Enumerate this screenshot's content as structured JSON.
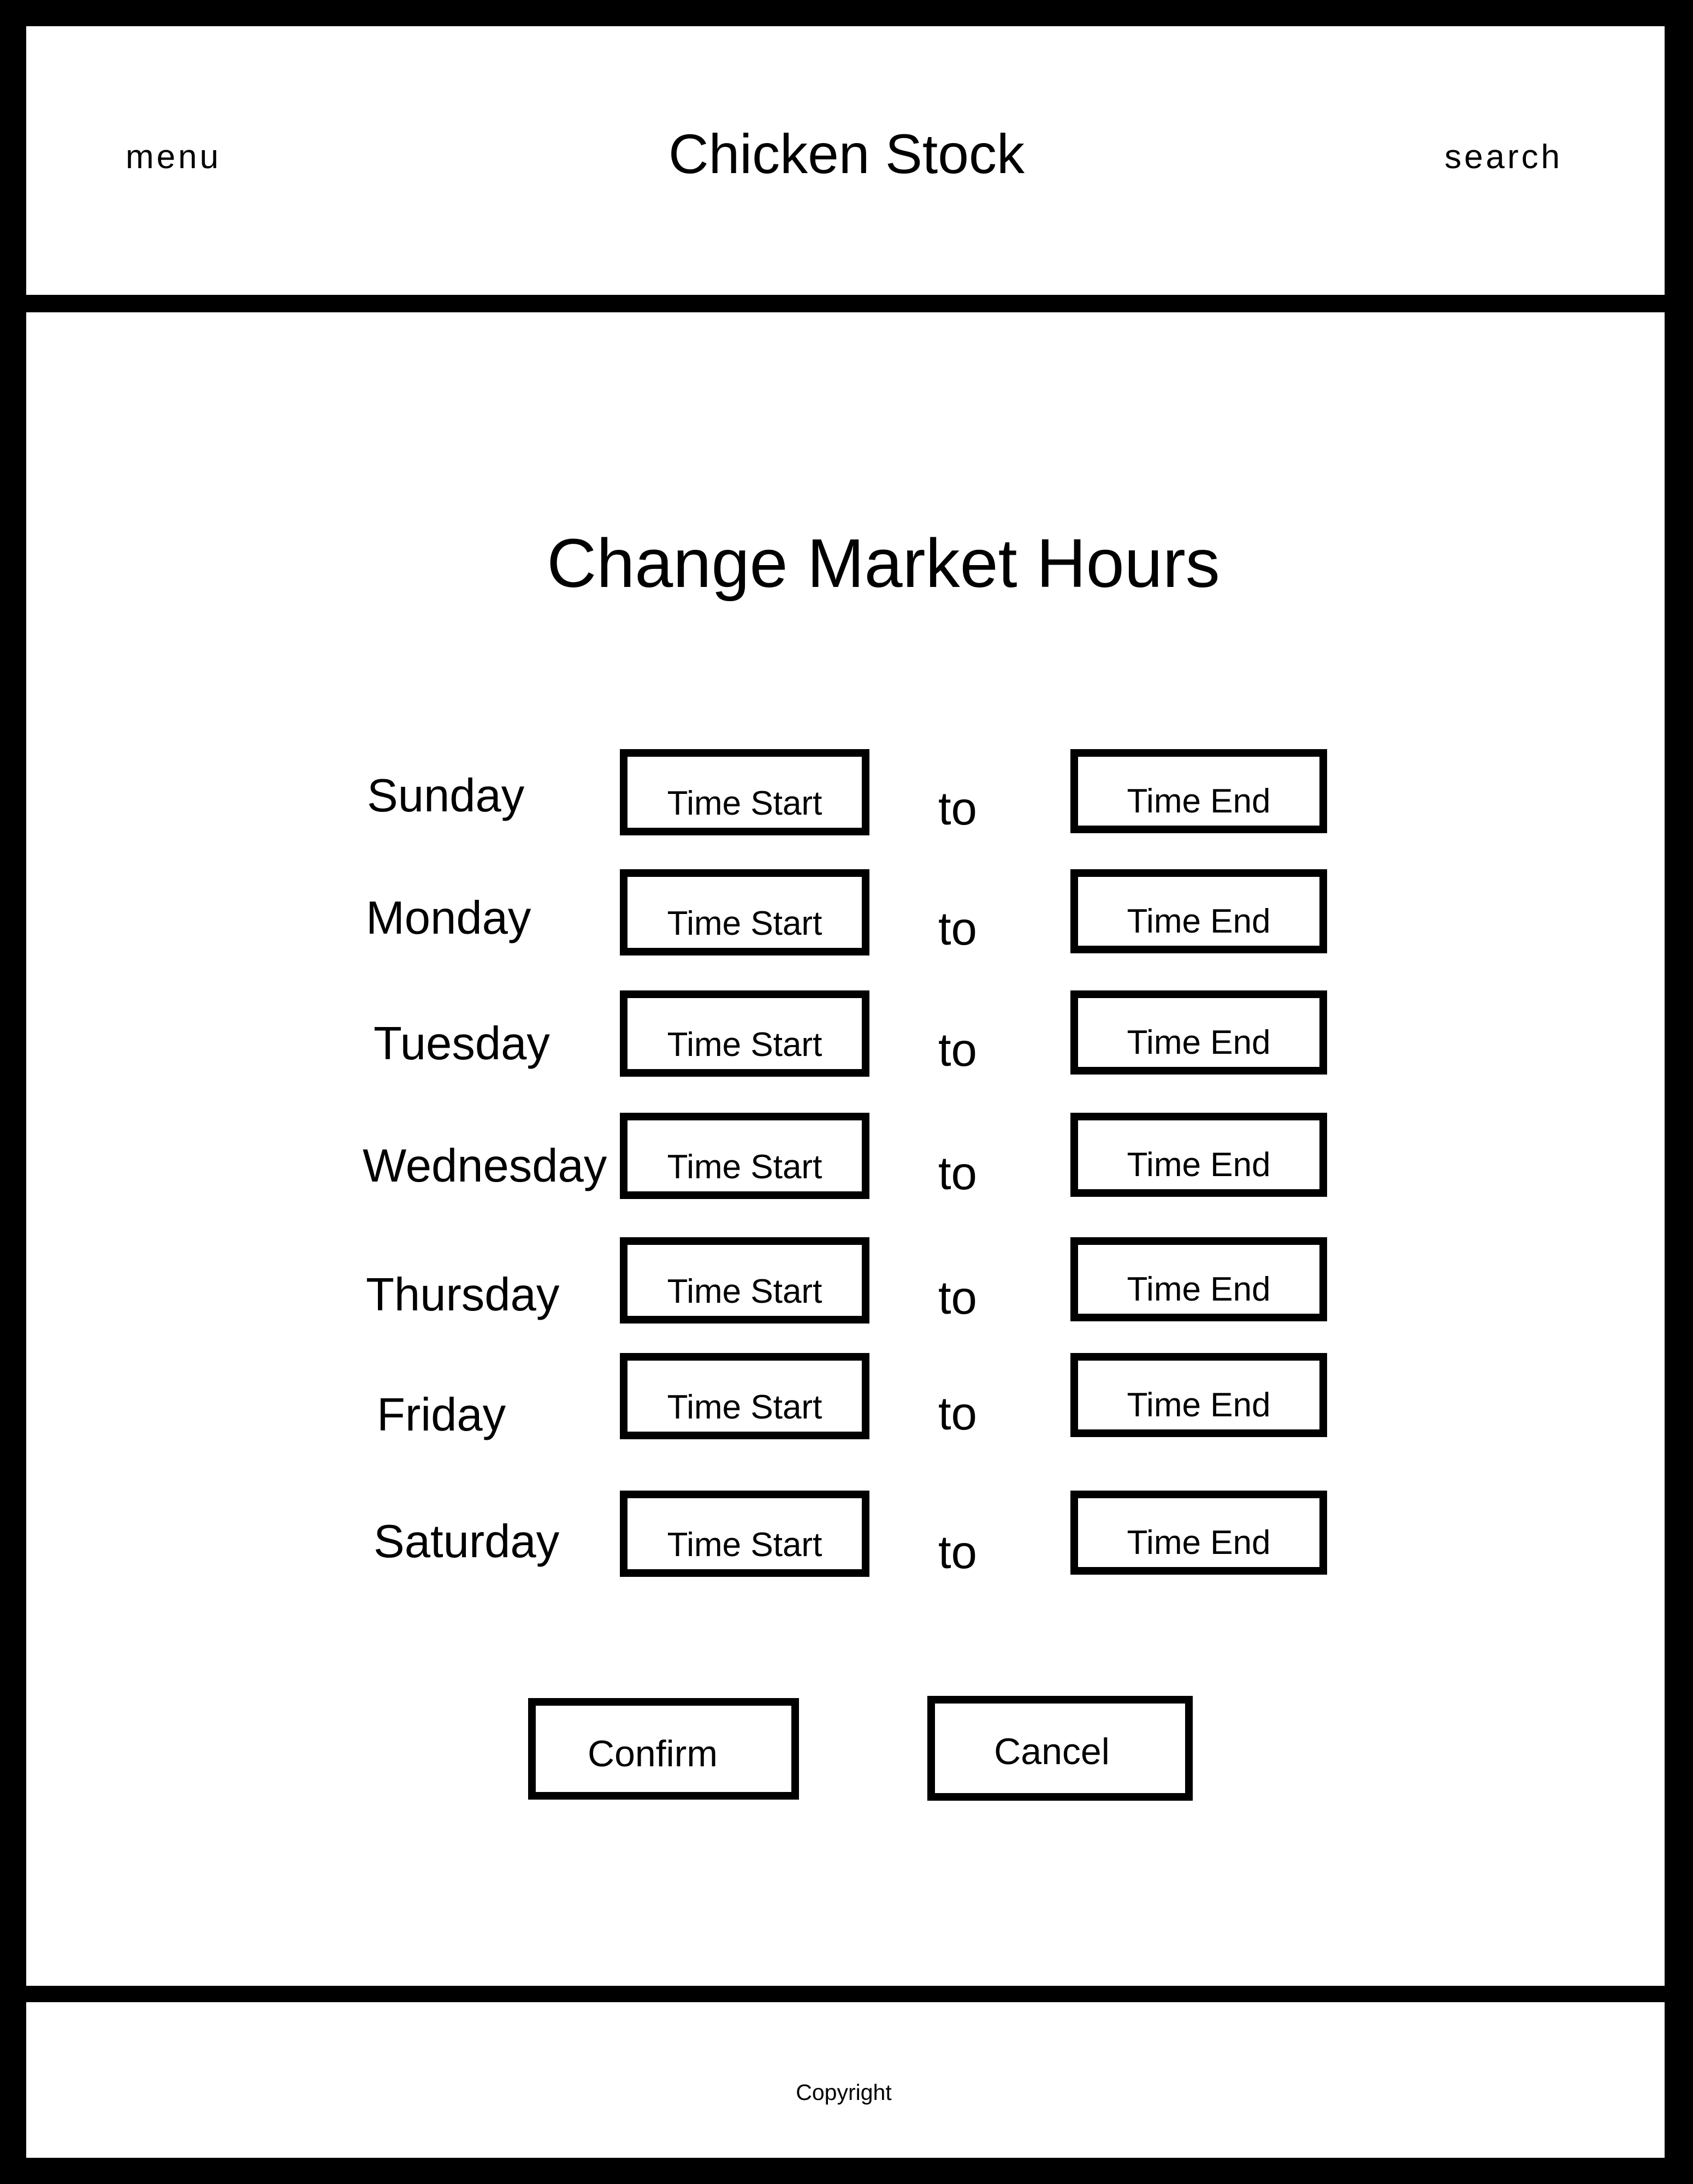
{
  "header": {
    "menu_label": "menu",
    "title": "Chicken Stock",
    "search_label": "search"
  },
  "main": {
    "title": "Change Market Hours",
    "days": [
      {
        "label": "Sunday",
        "start_placeholder": "Time Start",
        "separator": "to",
        "end_placeholder": "Time End"
      },
      {
        "label": "Monday",
        "start_placeholder": "Time Start",
        "separator": "to",
        "end_placeholder": "Time End"
      },
      {
        "label": "Tuesday",
        "start_placeholder": "Time Start",
        "separator": "to",
        "end_placeholder": "Time End"
      },
      {
        "label": "Wednesday",
        "start_placeholder": "Time Start",
        "separator": "to",
        "end_placeholder": "Time End"
      },
      {
        "label": "Thursday",
        "start_placeholder": "Time Start",
        "separator": "to",
        "end_placeholder": "Time End"
      },
      {
        "label": "Friday",
        "start_placeholder": "Time Start",
        "separator": "to",
        "end_placeholder": "Time End"
      },
      {
        "label": "Saturday",
        "start_placeholder": "Time Start",
        "separator": "to",
        "end_placeholder": "Time End"
      }
    ],
    "confirm_label": "Confirm",
    "cancel_label": "Cancel"
  },
  "footer": {
    "copyright": "Copyright"
  }
}
